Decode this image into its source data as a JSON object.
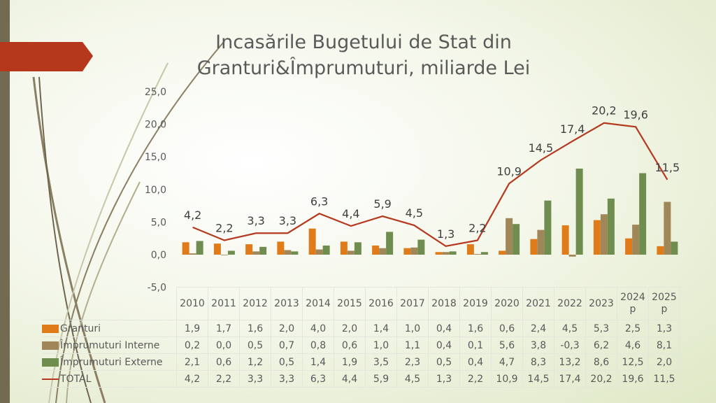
{
  "chart_data": {
    "type": "bar+line",
    "title": "Incasările Bugetului de Stat din Granturi&Împrumuturi, miliarde Lei",
    "categories": [
      "2010",
      "2011",
      "2012",
      "2013",
      "2014",
      "2015",
      "2016",
      "2017",
      "2018",
      "2019",
      "2020",
      "2021",
      "2022",
      "2023",
      "2024 p",
      "2025 p"
    ],
    "y_ticks": [
      "25,0",
      "20,0",
      "15,0",
      "10,0",
      "5,0",
      "0,0",
      "-5,0"
    ],
    "ylim": [
      -5,
      25
    ],
    "grid": false,
    "legend": "table-left",
    "series": [
      {
        "name": "Granturi",
        "type": "bar",
        "color": "#e07b1a",
        "values": [
          1.9,
          1.7,
          1.6,
          2.0,
          4.0,
          2.0,
          1.4,
          1.0,
          0.4,
          1.6,
          0.6,
          2.4,
          4.5,
          5.3,
          2.5,
          1.3
        ],
        "labels": [
          "1,9",
          "1,7",
          "1,6",
          "2,0",
          "4,0",
          "2,0",
          "1,4",
          "1,0",
          "0,4",
          "1,6",
          "0,6",
          "2,4",
          "4,5",
          "5,3",
          "2,5",
          "1,3"
        ]
      },
      {
        "name": "Împrumuturi Interne",
        "type": "bar",
        "color": "#a0875a",
        "values": [
          0.2,
          0.0,
          0.5,
          0.7,
          0.8,
          0.6,
          1.0,
          1.1,
          0.4,
          0.1,
          5.6,
          3.8,
          -0.3,
          6.2,
          4.6,
          8.1
        ],
        "labels": [
          "0,2",
          "0,0",
          "0,5",
          "0,7",
          "0,8",
          "0,6",
          "1,0",
          "1,1",
          "0,4",
          "0,1",
          "5,6",
          "3,8",
          "-0,3",
          "6,2",
          "4,6",
          "8,1"
        ]
      },
      {
        "name": "Împrumuturi Externe",
        "type": "bar",
        "color": "#6f8d4f",
        "values": [
          2.1,
          0.6,
          1.2,
          0.5,
          1.4,
          1.9,
          3.5,
          2.3,
          0.5,
          0.4,
          4.7,
          8.3,
          13.2,
          8.6,
          12.5,
          2.0
        ],
        "labels": [
          "2,1",
          "0,6",
          "1,2",
          "0,5",
          "1,4",
          "1,9",
          "3,5",
          "2,3",
          "0,5",
          "0,4",
          "4,7",
          "8,3",
          "13,2",
          "8,6",
          "12,5",
          "2,0"
        ]
      },
      {
        "name": "TOTAL",
        "type": "line",
        "color": "#b5391f",
        "values": [
          4.2,
          2.2,
          3.3,
          3.3,
          6.3,
          4.4,
          5.9,
          4.5,
          1.3,
          2.2,
          10.9,
          14.5,
          17.4,
          20.2,
          19.6,
          11.5
        ],
        "labels": [
          "4,2",
          "2,2",
          "3,3",
          "3,3",
          "6,3",
          "4,4",
          "5,9",
          "4,5",
          "1,3",
          "2,2",
          "10,9",
          "14,5",
          "17,4",
          "20,2",
          "19,6",
          "11,5"
        ]
      }
    ]
  }
}
